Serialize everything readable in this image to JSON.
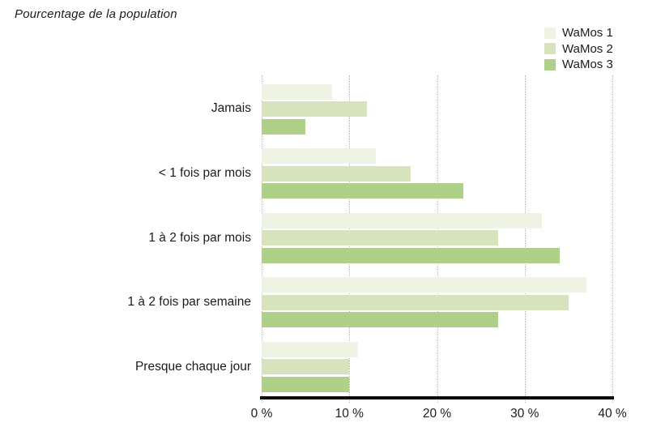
{
  "chart_data": {
    "type": "bar",
    "orientation": "horizontal",
    "title": "Pourcentage de la population",
    "categories": [
      "Jamais",
      "< 1 fois par mois",
      "1 à 2 fois par mois",
      "1 à 2 fois par semaine",
      "Presque chaque jour"
    ],
    "series": [
      {
        "name": "WaMos 1",
        "color": "#eef3e3",
        "values": [
          8,
          13,
          32,
          37,
          11
        ]
      },
      {
        "name": "WaMos 2",
        "color": "#d6e3bc",
        "values": [
          12,
          17,
          27,
          35,
          10
        ]
      },
      {
        "name": "WaMos 3",
        "color": "#aed089",
        "values": [
          5,
          23,
          34,
          27,
          10
        ]
      }
    ],
    "xlim": [
      0,
      40
    ],
    "x_tick_values": [
      0,
      10,
      20,
      30,
      40
    ],
    "x_tick_labels": [
      "0 %",
      "10 %",
      "20 %",
      "30 %",
      "40 %"
    ],
    "grid": "vertical-dotted",
    "legend_position": "top-right",
    "colors": {
      "axis": "#0d0d0d",
      "gridline": "#b6b6b6",
      "text": "#1c1c1c",
      "background": "#ffffff"
    }
  }
}
